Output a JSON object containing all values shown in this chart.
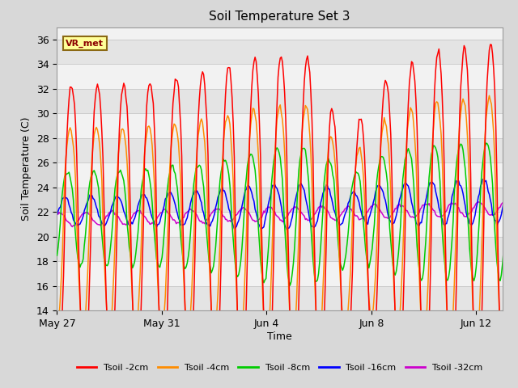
{
  "title": "Soil Temperature Set 3",
  "xlabel": "Time",
  "ylabel": "Soil Temperature (C)",
  "ylim": [
    14,
    37
  ],
  "yticks": [
    14,
    16,
    18,
    20,
    22,
    24,
    26,
    28,
    30,
    32,
    34,
    36
  ],
  "xtick_labels": [
    "May 27",
    "May 31",
    "Jun 4",
    "Jun 8",
    "Jun 12"
  ],
  "xtick_days": [
    0,
    4,
    8,
    12,
    16
  ],
  "annotation_text": "VR_met",
  "colors": {
    "Tsoil -2cm": "#FF0000",
    "Tsoil -4cm": "#FF8C00",
    "Tsoil -8cm": "#00CC00",
    "Tsoil -16cm": "#0000FF",
    "Tsoil -32cm": "#CC00CC"
  },
  "fig_bg": "#D8D8D8",
  "plot_bg": "#F2F2F2",
  "band_color": "#E4E4E4",
  "grid_color": "#CCCCCC",
  "legend_labels": [
    "Tsoil -2cm",
    "Tsoil -4cm",
    "Tsoil -8cm",
    "Tsoil -16cm",
    "Tsoil -32cm"
  ]
}
